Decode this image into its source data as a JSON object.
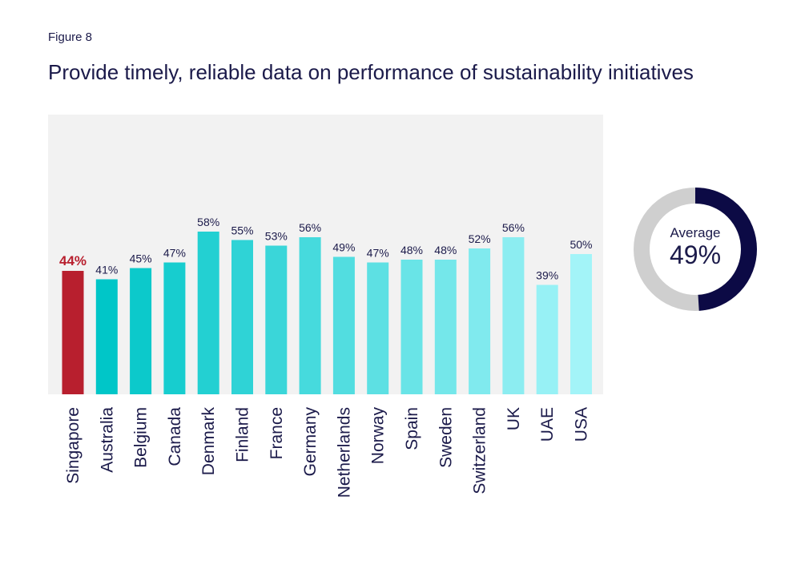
{
  "figure_label": "Figure 8",
  "title": "Provide timely, reliable data on performance of sustainability initiatives",
  "chart_data": {
    "type": "bar",
    "categories": [
      "Singapore",
      "Australia",
      "Belgium",
      "Canada",
      "Denmark",
      "Finland",
      "France",
      "Germany",
      "Netherlands",
      "Norway",
      "Spain",
      "Sweden",
      "Switzerland",
      "UK",
      "UAE",
      "USA"
    ],
    "values": [
      44,
      41,
      45,
      47,
      58,
      55,
      53,
      56,
      49,
      47,
      48,
      48,
      52,
      56,
      39,
      50
    ],
    "data_labels": [
      "44%",
      "41%",
      "45%",
      "47%",
      "58%",
      "55%",
      "53%",
      "56%",
      "49%",
      "47%",
      "48%",
      "48%",
      "52%",
      "56%",
      "39%",
      "50%"
    ],
    "ylim": [
      0,
      100
    ],
    "grid": false,
    "highlight_category": "Singapore",
    "colors": {
      "highlight": "#b81f2e",
      "series_gradient_start": "#00c6c8",
      "series_gradient_end": "#a3f4f8",
      "plot_background": "#f2f2f2",
      "text": "#1b1a4a"
    }
  },
  "average": {
    "label": "Average",
    "value_text": "49%",
    "value": 49,
    "colors": {
      "filled": "#0c0a45",
      "remaining": "#cfcfcf"
    }
  }
}
